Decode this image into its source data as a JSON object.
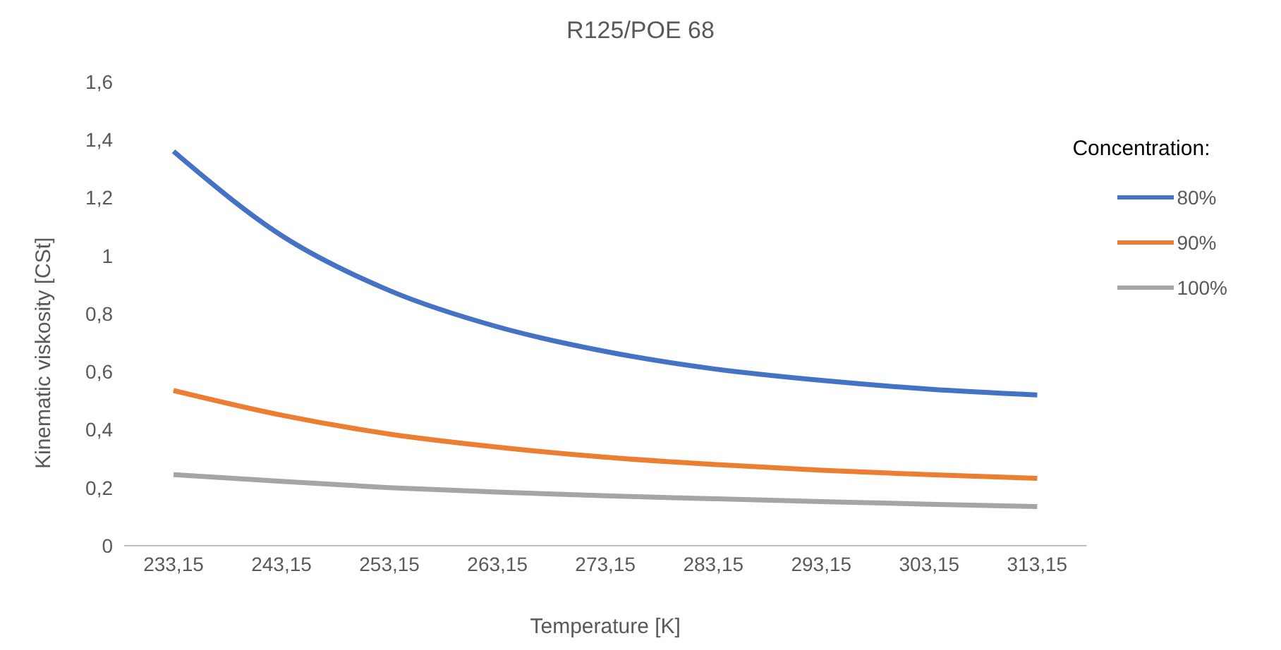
{
  "chart_data": {
    "type": "line",
    "title": "R125/POE 68",
    "xlabel": "Temperature [K]",
    "ylabel": "Kinematic viskosity  [CSt]",
    "legend_title": "Concentration:",
    "categories": [
      "233,15",
      "243,15",
      "253,15",
      "263,15",
      "273,15",
      "283,15",
      "293,15",
      "303,15",
      "313,15"
    ],
    "series": [
      {
        "name": "80%",
        "color": "#4472c4",
        "values": [
          1.36,
          1.07,
          0.88,
          0.755,
          0.67,
          0.61,
          0.57,
          0.54,
          0.52
        ]
      },
      {
        "name": "90%",
        "color": "#ed7d31",
        "values": [
          0.535,
          0.45,
          0.385,
          0.34,
          0.305,
          0.28,
          0.26,
          0.245,
          0.232
        ]
      },
      {
        "name": "100%",
        "color": "#a5a5a5",
        "values": [
          0.245,
          0.222,
          0.2,
          0.185,
          0.172,
          0.162,
          0.152,
          0.143,
          0.135
        ]
      }
    ],
    "ylim": [
      0,
      1.6
    ],
    "yticks": [
      0,
      {
        "value": 0.2,
        "label": "0,2"
      },
      {
        "value": 0.4,
        "label": "0,4"
      },
      {
        "value": 0.6,
        "label": "0,6"
      },
      {
        "value": 0.8,
        "label": "0,8"
      },
      1,
      {
        "value": 1.2,
        "label": "1,2"
      },
      {
        "value": 1.4,
        "label": "1,4"
      },
      {
        "value": 1.6,
        "label": "1,6"
      }
    ],
    "grid": false,
    "legend": "right",
    "marker": "none",
    "line_style": "solid"
  }
}
